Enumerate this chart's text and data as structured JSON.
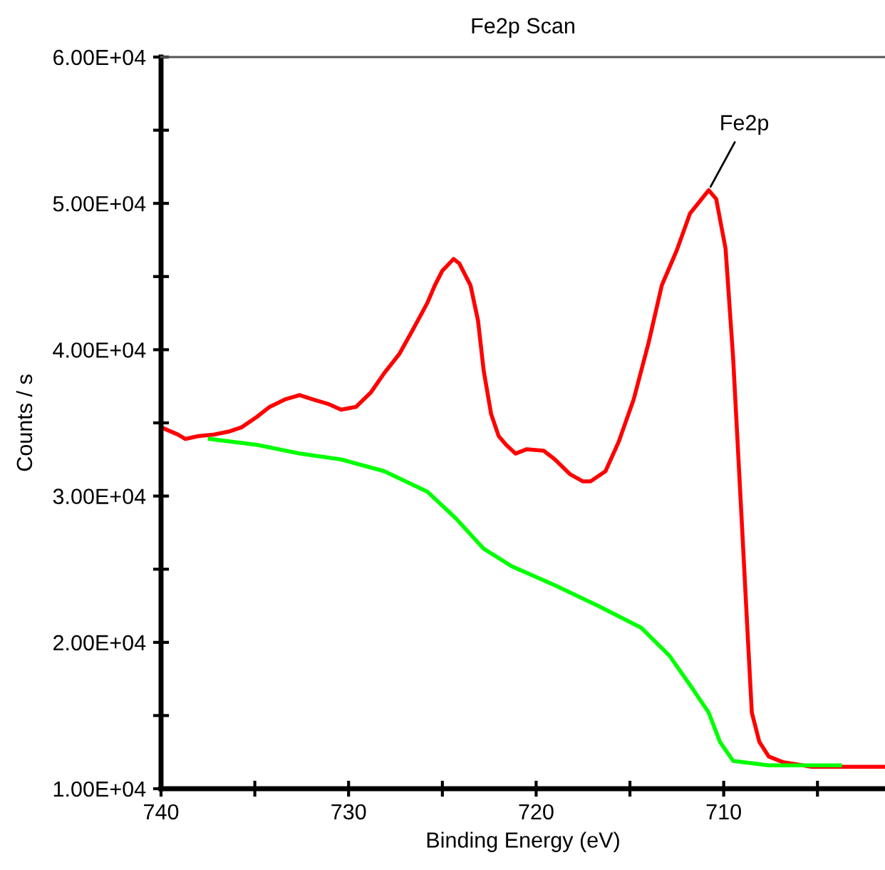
{
  "chart_data": {
    "type": "line",
    "title": "Fe2p Scan",
    "xlabel": "Binding Energy (eV)",
    "ylabel": "Counts / s",
    "xlim": [
      740,
      701.4
    ],
    "xticks": [
      740,
      {
        "value": 735,
        "label": null
      },
      730,
      {
        "value": 725,
        "label": null
      },
      720,
      {
        "value": 715,
        "label": null
      },
      710,
      {
        "value": 705,
        "label": null
      }
    ],
    "ylim": [
      10000,
      60000
    ],
    "yticks": [
      {
        "value": 10000,
        "label": "1.00E+04"
      },
      {
        "value": 15000,
        "label": null
      },
      {
        "value": 20000,
        "label": "2.00E+04"
      },
      {
        "value": 25000,
        "label": null
      },
      {
        "value": 30000,
        "label": "3.00E+04"
      },
      {
        "value": 35000,
        "label": null
      },
      {
        "value": 40000,
        "label": "4.00E+04"
      },
      {
        "value": 45000,
        "label": null
      },
      {
        "value": 50000,
        "label": "5.00E+04"
      },
      {
        "value": 55000,
        "label": null
      },
      {
        "value": 60000,
        "label": "6.00E+04"
      }
    ],
    "grid": false,
    "legend": false,
    "marker": "none",
    "line_style": "solid",
    "series": [
      {
        "color": "#ff0000",
        "x": [
          740,
          739.1,
          738.7,
          738,
          737.2,
          736.4,
          735.7,
          734.9,
          734.2,
          733.4,
          732.6,
          731.9,
          731.1,
          730.4,
          729.6,
          728.8,
          728.1,
          727.3,
          726.6,
          725.8,
          725.4,
          725,
          724.4,
          724.1,
          723.5,
          723.1,
          722.8,
          722.4,
          722,
          721.6,
          721.1,
          720.5,
          719.6,
          719,
          718.2,
          717.5,
          717.1,
          716.3,
          715.6,
          714.8,
          714,
          713.3,
          712.5,
          711.8,
          710.8,
          710.4,
          709.9,
          709.5,
          709.1,
          708.7,
          708.5,
          708.1,
          707.6,
          706.8,
          705.3,
          703,
          701.4
        ],
        "values": [
          34700,
          34200,
          33900,
          34100,
          34200,
          34400,
          34700,
          35400,
          36100,
          36600,
          36900,
          36600,
          36300,
          35900,
          36100,
          37100,
          38400,
          39700,
          41300,
          43200,
          44400,
          45400,
          46200,
          45900,
          44400,
          42000,
          38600,
          35600,
          34100,
          33500,
          32900,
          33200,
          33100,
          32500,
          31500,
          31000,
          31000,
          31700,
          33700,
          36600,
          40500,
          44400,
          46800,
          49300,
          50900,
          50300,
          46900,
          39500,
          29800,
          20000,
          15200,
          13200,
          12200,
          11800,
          11500,
          11500,
          11500
        ]
      },
      {
        "color": "#00ff00",
        "x": [
          737.4,
          734.9,
          732.6,
          730.4,
          728.1,
          725.8,
          724.3,
          722.8,
          721.3,
          719,
          716.7,
          714.4,
          712.9,
          711.8,
          710.8,
          710.2,
          709.5,
          707.6,
          703.8
        ],
        "values": [
          33900,
          33500,
          32900,
          32500,
          31700,
          30300,
          28500,
          26400,
          25200,
          23900,
          22500,
          21000,
          19100,
          17100,
          15200,
          13200,
          11900,
          11600,
          11600
        ]
      }
    ],
    "annotations": [
      {
        "text": "Fe2p",
        "x": 710.8,
        "y": 50900
      }
    ]
  }
}
